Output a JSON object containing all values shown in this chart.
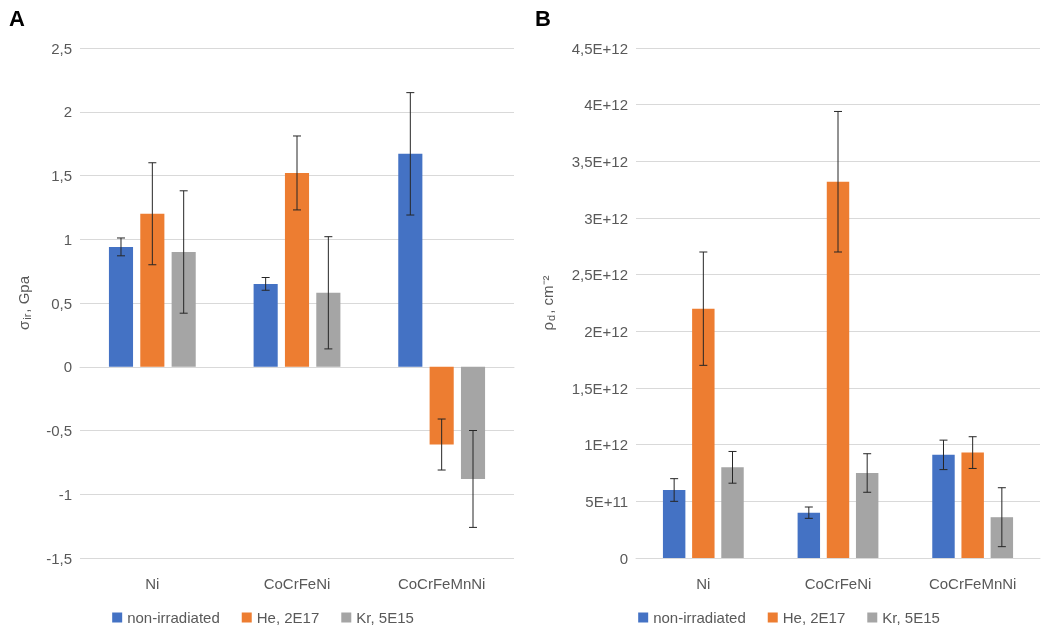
{
  "chart_data": [
    {
      "type": "bar",
      "title": "A",
      "ylabel": "σ$_{ir}$, Gpa",
      "categories": [
        "Ni",
        "CoCrFeNi",
        "CoCrFeMnNi"
      ],
      "series": [
        {
          "name": "non-irradiated",
          "color": "#4472c4",
          "values": [
            0.94,
            0.65,
            1.67
          ],
          "errors": [
            0.07,
            0.05,
            0.48
          ]
        },
        {
          "name": "He, 2E17",
          "color": "#ed7d31",
          "values": [
            1.2,
            1.52,
            -0.61
          ],
          "errors": [
            0.4,
            0.29,
            0.2
          ]
        },
        {
          "name": "Kr, 5E15",
          "color": "#a5a5a5",
          "values": [
            0.9,
            0.58,
            -0.88
          ],
          "errors": [
            0.48,
            0.44,
            0.38
          ]
        }
      ],
      "ylim": [
        -1.5,
        2.5
      ],
      "yticks": [
        {
          "value": -1.5,
          "label": "-1,5"
        },
        -1,
        {
          "value": -0.5,
          "label": "-0,5"
        },
        0,
        {
          "value": 0.5,
          "label": "0,5"
        },
        1,
        {
          "value": 1.5,
          "label": "1,5"
        },
        2,
        {
          "value": 2.5,
          "label": "2,5"
        }
      ],
      "grid": "y",
      "legend": "bottom"
    },
    {
      "type": "bar",
      "title": "B",
      "ylabel": "ρ$_{d}$, cm⁻²",
      "categories": [
        "Ni",
        "CoCrFeNi",
        "CoCrFeMnNi"
      ],
      "series": [
        {
          "name": "non-irradiated",
          "color": "#4472c4",
          "values": [
            600000000000.0,
            400000000000.0,
            910000000000.0
          ],
          "errors": [
            100000000000.0,
            50000000000.0,
            130000000000.0
          ]
        },
        {
          "name": "He, 2E17",
          "color": "#ed7d31",
          "values": [
            2200000000000.0,
            3320000000000.0,
            930000000000.0
          ],
          "errors": [
            500000000000.0,
            620000000000.0,
            140000000000.0
          ]
        },
        {
          "name": "Kr, 5E15",
          "color": "#a5a5a5",
          "values": [
            800000000000.0,
            750000000000.0,
            360000000000.0
          ],
          "errors": [
            140000000000.0,
            170000000000.0,
            260000000000.0
          ]
        }
      ],
      "ylim": [
        0,
        4500000000000.0
      ],
      "yticks": [
        0,
        {
          "value": 500000000000.0,
          "label": "5E+11"
        },
        {
          "value": 1000000000000.0,
          "label": "1E+12"
        },
        {
          "value": 1500000000000.0,
          "label": "1,5E+12"
        },
        {
          "value": 2000000000000.0,
          "label": "2E+12"
        },
        {
          "value": 2500000000000.0,
          "label": "2,5E+12"
        },
        {
          "value": 3000000000000.0,
          "label": "3E+12"
        },
        {
          "value": 3500000000000.0,
          "label": "3,5E+12"
        },
        {
          "value": 4000000000000.0,
          "label": "4E+12"
        },
        {
          "value": 4500000000000.0,
          "label": "4,5E+12"
        }
      ],
      "grid": "y",
      "legend": "bottom"
    }
  ]
}
